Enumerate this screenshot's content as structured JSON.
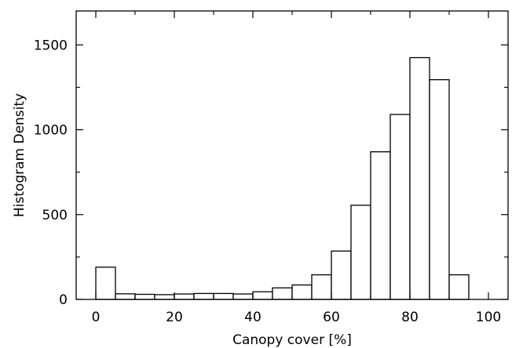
{
  "chart_data": {
    "type": "bar",
    "title": "",
    "xlabel": "Canopy cover [%]",
    "ylabel": "Histogram Density",
    "xlim": [
      -5,
      105
    ],
    "ylim": [
      0,
      1700
    ],
    "xticks": [
      0,
      20,
      40,
      60,
      80,
      100
    ],
    "yticks": [
      0,
      500,
      1000,
      1500
    ],
    "xminor_ticks": [
      10,
      30,
      50,
      70,
      90
    ],
    "yminor_ticks": [
      250,
      750,
      1250
    ],
    "bin_width": 5,
    "bins": [
      {
        "start": 0,
        "value": 190
      },
      {
        "start": 5,
        "value": 33
      },
      {
        "start": 10,
        "value": 30
      },
      {
        "start": 15,
        "value": 28
      },
      {
        "start": 20,
        "value": 32
      },
      {
        "start": 25,
        "value": 35
      },
      {
        "start": 30,
        "value": 35
      },
      {
        "start": 35,
        "value": 32
      },
      {
        "start": 40,
        "value": 45
      },
      {
        "start": 45,
        "value": 68
      },
      {
        "start": 50,
        "value": 85
      },
      {
        "start": 55,
        "value": 145
      },
      {
        "start": 60,
        "value": 285
      },
      {
        "start": 65,
        "value": 555
      },
      {
        "start": 70,
        "value": 870
      },
      {
        "start": 75,
        "value": 1090
      },
      {
        "start": 80,
        "value": 1425
      },
      {
        "start": 85,
        "value": 1295
      },
      {
        "start": 90,
        "value": 145
      }
    ],
    "grid": false,
    "legend": "none"
  }
}
